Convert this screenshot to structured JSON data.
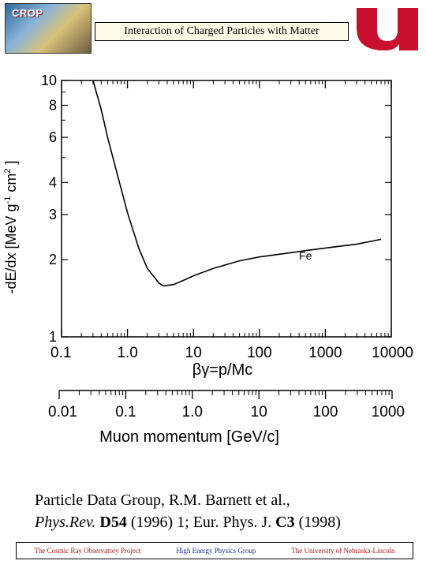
{
  "header": {
    "logo_left_text": "CROP",
    "title": "Interaction of Charged Particles with Matter"
  },
  "colors": {
    "logo_red": "#c8102e",
    "curve": "#000000"
  },
  "chart_data": {
    "type": "line",
    "ylabel_parts": {
      "a": "-dE/dx [MeV g",
      "sup1": "-1",
      "b": " cm",
      "sup2": "2",
      "c": " ]"
    },
    "xlabel": "βγ=p/Mc",
    "x_scale": "log",
    "y_scale": "log",
    "xlim": [
      0.1,
      10000
    ],
    "ylim": [
      1,
      10
    ],
    "x_ticks": [
      "0.1",
      "1.0",
      "10",
      "100",
      "1000",
      "10000"
    ],
    "x_tick_values": [
      0.1,
      1,
      10,
      100,
      1000,
      10000
    ],
    "y_ticks": [
      "10",
      "8",
      "6",
      "4",
      "3",
      "2",
      "1"
    ],
    "y_tick_values": [
      10,
      8,
      6,
      4,
      3,
      2,
      1
    ],
    "grid": false,
    "series": [
      {
        "name": "Fe",
        "x": [
          0.3,
          0.4,
          0.5,
          0.7,
          1.0,
          1.5,
          2.0,
          3.0,
          3.5,
          5.0,
          7.0,
          10,
          20,
          50,
          100,
          300,
          500,
          1000,
          3000,
          7000
        ],
        "y": [
          10.0,
          7.7,
          6.0,
          4.3,
          3.05,
          2.2,
          1.85,
          1.62,
          1.58,
          1.6,
          1.66,
          1.73,
          1.85,
          1.98,
          2.05,
          2.13,
          2.17,
          2.22,
          2.3,
          2.4
        ]
      }
    ],
    "second_axis": {
      "label": "Muon momentum [GeV/c]",
      "ticks": [
        "0.01",
        "0.1",
        "1.0",
        "10",
        "100",
        "1000"
      ],
      "tick_values": [
        0.01,
        0.1,
        1,
        10,
        100,
        1000
      ],
      "range": [
        0.01,
        1000
      ]
    }
  },
  "citation": {
    "line1": "Particle Data Group, R.M. Barnett et al.,",
    "journal1": "Phys.Rev.",
    "vol1": "D54",
    "rest1": " (1996) 1; Eur. Phys. J. ",
    "vol2": "C3",
    "rest2": " (1998)"
  },
  "footer": {
    "left": "The Cosmic Ray Observatory Project",
    "center": "High Energy Physics Group",
    "right": "The University of Nebraska-Lincoln"
  }
}
